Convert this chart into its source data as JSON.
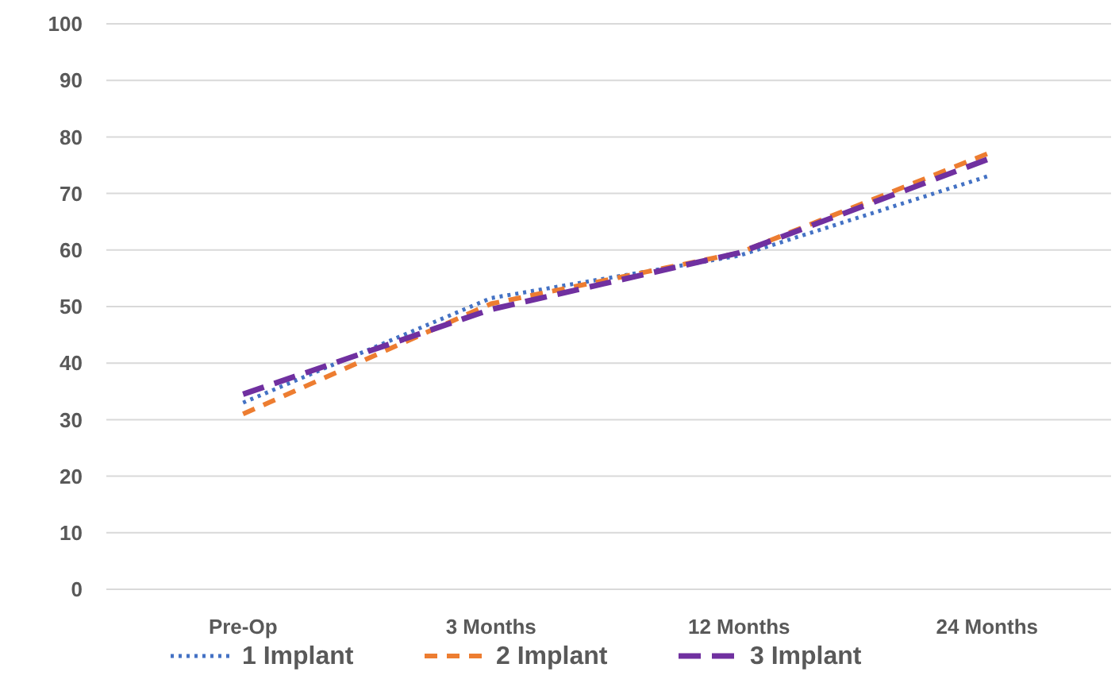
{
  "chart_data": {
    "type": "line",
    "categories": [
      "Pre-Op",
      "3 Months",
      "12 Months",
      "24 Months"
    ],
    "series": [
      {
        "name": "1 Implant",
        "color": "#4472c4",
        "line_style": "dotted",
        "values": [
          33,
          51.5,
          59,
          73
        ]
      },
      {
        "name": "2 Implant",
        "color": "#ed7d31",
        "line_style": "dashed",
        "values": [
          31,
          50.5,
          59.5,
          77
        ]
      },
      {
        "name": "3 Implant",
        "color": "#7030a0",
        "line_style": "longdash",
        "values": [
          34.5,
          49.5,
          59.5,
          76
        ]
      }
    ],
    "ylim": [
      0,
      100
    ],
    "yticks": [
      0,
      10,
      20,
      30,
      40,
      50,
      60,
      70,
      80,
      90,
      100
    ],
    "grid": "y",
    "legend": "bottom"
  }
}
